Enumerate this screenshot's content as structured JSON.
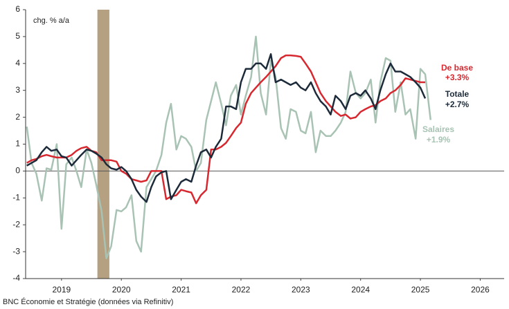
{
  "chart_data": {
    "type": "line",
    "unit_label": "chg. % a/a",
    "source": "BNC Économie et Stratégie (données via Refinitiv)",
    "xlim": [
      2018.9,
      2026.9
    ],
    "xticks": [
      {
        "value": 2019.5,
        "label": "2019"
      },
      {
        "value": 2020.5,
        "label": "2020"
      },
      {
        "value": 2021.5,
        "label": "2021"
      },
      {
        "value": 2022.5,
        "label": "2022"
      },
      {
        "value": 2023.5,
        "label": "2023"
      },
      {
        "value": 2024.5,
        "label": "2024"
      },
      {
        "value": 2025.5,
        "label": "2025"
      },
      {
        "value": 2026.5,
        "label": "2026"
      }
    ],
    "ylim": [
      -4,
      6
    ],
    "yticks": [
      -4,
      -3,
      -2,
      -1,
      0,
      1,
      2,
      3,
      4,
      5,
      6
    ],
    "grid": false,
    "shaded_region": {
      "x": [
        2020.1,
        2020.3
      ],
      "color": "#b5a081"
    },
    "x": [
      2018.92,
      2019.0,
      2019.08,
      2019.17,
      2019.25,
      2019.33,
      2019.42,
      2019.5,
      2019.58,
      2019.67,
      2019.75,
      2019.83,
      2019.92,
      2020.0,
      2020.08,
      2020.17,
      2020.25,
      2020.33,
      2020.42,
      2020.5,
      2020.58,
      2020.67,
      2020.75,
      2020.83,
      2020.92,
      2021.0,
      2021.08,
      2021.17,
      2021.25,
      2021.33,
      2021.42,
      2021.5,
      2021.58,
      2021.67,
      2021.75,
      2021.83,
      2021.92,
      2022.0,
      2022.08,
      2022.17,
      2022.25,
      2022.33,
      2022.42,
      2022.5,
      2022.58,
      2022.67,
      2022.75,
      2022.83,
      2022.92,
      2023.0,
      2023.08,
      2023.17,
      2023.25,
      2023.33,
      2023.42,
      2023.5,
      2023.58,
      2023.67,
      2023.75,
      2023.83,
      2023.92,
      2024.0,
      2024.08,
      2024.17,
      2024.25,
      2024.33,
      2024.42,
      2024.5,
      2024.58,
      2024.67,
      2024.75,
      2024.83,
      2024.92,
      2025.0,
      2025.08,
      2025.17,
      2025.25,
      2025.33,
      2025.42,
      2025.5,
      2025.58,
      2025.67
    ],
    "series": [
      {
        "name": "Salaires",
        "end_label": "+1.9%",
        "color": "#a8c3b4",
        "values": [
          1.65,
          0.3,
          -0.1,
          -1.1,
          0.1,
          0.05,
          1.0,
          -2.15,
          0.25,
          0.5,
          0.0,
          -0.6,
          0.8,
          0.3,
          -0.5,
          -1.5,
          -3.25,
          -2.8,
          -1.45,
          -1.5,
          -1.35,
          -0.9,
          -2.6,
          -3.0,
          -0.6,
          -0.3,
          0.0,
          0.6,
          1.8,
          2.5,
          0.8,
          1.3,
          1.2,
          0.9,
          0.0,
          0.3,
          1.9,
          2.6,
          3.3,
          2.5,
          1.7,
          2.8,
          3.2,
          2.1,
          2.8,
          3.5,
          5.0,
          2.9,
          2.1,
          4.1,
          3.5,
          1.6,
          1.2,
          2.3,
          2.2,
          1.5,
          1.4,
          2.2,
          0.7,
          1.5,
          1.3,
          1.3,
          1.5,
          1.8,
          2.2,
          3.7,
          2.9,
          2.7,
          2.9,
          3.4,
          1.8,
          3.3,
          4.2,
          4.1,
          2.2,
          3.3,
          2.1,
          2.3,
          1.2,
          3.8,
          3.6,
          1.9
        ]
      },
      {
        "name": "De base",
        "end_label": "+3.3%",
        "color": "#d7282f",
        "values": [
          0.3,
          0.4,
          0.45,
          0.55,
          0.6,
          0.55,
          0.5,
          0.5,
          0.5,
          0.6,
          0.75,
          0.85,
          0.9,
          0.75,
          0.7,
          0.4,
          0.4,
          0.4,
          0.35,
          0.0,
          -0.1,
          -0.3,
          -0.35,
          -0.4,
          -0.35,
          0.0,
          0.0,
          0.0,
          -1.05,
          -0.95,
          -0.9,
          -0.7,
          -0.75,
          -0.8,
          -1.2,
          -0.9,
          -0.7,
          0.8,
          0.8,
          0.9,
          1.05,
          1.3,
          1.6,
          1.8,
          2.5,
          2.9,
          3.1,
          3.3,
          3.5,
          3.7,
          3.9,
          4.2,
          4.3,
          4.3,
          4.28,
          4.25,
          4.0,
          3.7,
          3.3,
          2.9,
          2.6,
          2.4,
          2.2,
          2.05,
          2.1,
          1.95,
          2.0,
          2.2,
          2.3,
          2.4,
          2.45,
          2.6,
          2.7,
          2.9,
          3.0,
          3.2,
          3.45,
          3.4,
          3.35,
          3.3,
          3.3,
          null
        ]
      },
      {
        "name": "Totale",
        "end_label": "+2.7%",
        "color": "#1c2a39",
        "values": [
          0.2,
          0.3,
          0.4,
          0.7,
          0.9,
          0.75,
          0.8,
          0.55,
          0.5,
          0.2,
          0.4,
          0.6,
          0.8,
          0.75,
          0.65,
          0.5,
          0.25,
          0.1,
          0.05,
          0.15,
          0.0,
          -0.3,
          -0.7,
          -0.95,
          -1.15,
          -0.6,
          -0.2,
          -0.05,
          0.0,
          -1.05,
          -0.7,
          -0.4,
          -0.3,
          -0.4,
          0.2,
          0.7,
          0.8,
          0.5,
          0.9,
          1.2,
          2.4,
          2.4,
          2.3,
          3.3,
          3.8,
          3.8,
          4.0,
          4.0,
          3.8,
          4.35,
          3.3,
          3.4,
          3.3,
          3.2,
          3.3,
          3.1,
          3.0,
          3.3,
          2.9,
          2.6,
          2.4,
          2.1,
          2.8,
          2.6,
          2.3,
          2.8,
          2.9,
          2.8,
          3.0,
          2.7,
          2.3,
          3.0,
          3.6,
          4.0,
          3.7,
          3.7,
          3.6,
          3.5,
          3.3,
          3.1,
          2.7,
          null
        ]
      }
    ]
  }
}
